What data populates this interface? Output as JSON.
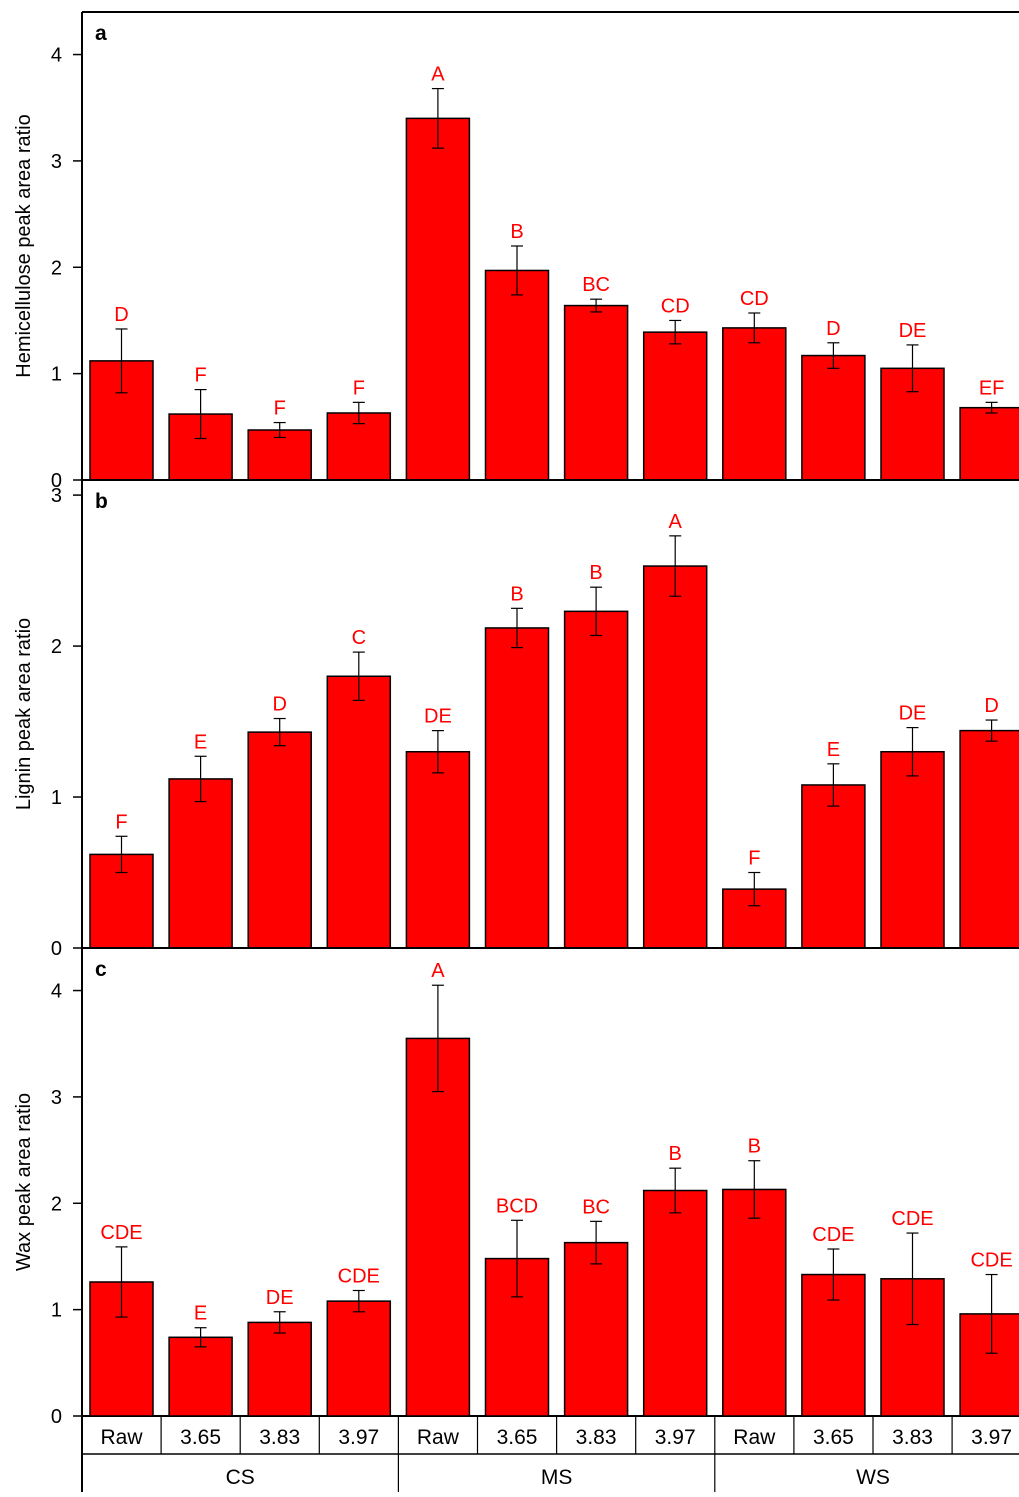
{
  "colors": {
    "bar": "#ff0000",
    "letter": "#ff0000",
    "axis": "#000000"
  },
  "chart_data": [
    {
      "panel": "a",
      "type": "bar",
      "ylabel": "Hemicellulose peak area ratio",
      "ylim": [
        0,
        4.4
      ],
      "yticks": [
        "0",
        "1",
        "2",
        "3",
        "4"
      ],
      "values": [
        1.12,
        0.62,
        0.47,
        0.63,
        3.4,
        1.97,
        1.64,
        1.39,
        1.43,
        1.17,
        1.05,
        0.68
      ],
      "errors": [
        0.3,
        0.23,
        0.07,
        0.1,
        0.28,
        0.23,
        0.06,
        0.11,
        0.14,
        0.12,
        0.22,
        0.05
      ],
      "letters": [
        "D",
        "F",
        "F",
        "F",
        "A",
        "B",
        "BC",
        "CD",
        "CD",
        "D",
        "DE",
        "EF"
      ]
    },
    {
      "panel": "b",
      "type": "bar",
      "ylabel": "Lignin peak area ratio",
      "ylim": [
        0,
        3.1
      ],
      "yticks": [
        "0",
        "1",
        "2",
        "3"
      ],
      "values": [
        0.62,
        1.12,
        1.43,
        1.8,
        1.3,
        2.12,
        2.23,
        2.53,
        0.39,
        1.08,
        1.3,
        1.44
      ],
      "errors": [
        0.12,
        0.15,
        0.09,
        0.16,
        0.14,
        0.13,
        0.16,
        0.2,
        0.11,
        0.14,
        0.16,
        0.07
      ],
      "letters": [
        "F",
        "E",
        "D",
        "C",
        "DE",
        "B",
        "B",
        "A",
        "F",
        "E",
        "DE",
        "D"
      ]
    },
    {
      "panel": "c",
      "type": "bar",
      "ylabel": "Wax peak area ratio",
      "ylim": [
        0,
        4.4
      ],
      "yticks": [
        "0",
        "1",
        "2",
        "3",
        "4"
      ],
      "values": [
        1.26,
        0.74,
        0.88,
        1.08,
        3.55,
        1.48,
        1.63,
        2.12,
        2.13,
        1.33,
        1.29,
        0.96
      ],
      "errors": [
        0.33,
        0.09,
        0.1,
        0.1,
        0.5,
        0.36,
        0.2,
        0.21,
        0.27,
        0.24,
        0.43,
        0.37
      ],
      "letters": [
        "CDE",
        "E",
        "DE",
        "CDE",
        "A",
        "BCD",
        "BC",
        "B",
        "B",
        "CDE",
        "CDE",
        "CDE"
      ]
    }
  ],
  "categories": [
    "Raw",
    "3.65",
    "3.83",
    "3.97",
    "Raw",
    "3.65",
    "3.83",
    "3.97",
    "Raw",
    "3.65",
    "3.83",
    "3.97"
  ],
  "groups": [
    "CS",
    "MS",
    "WS"
  ]
}
